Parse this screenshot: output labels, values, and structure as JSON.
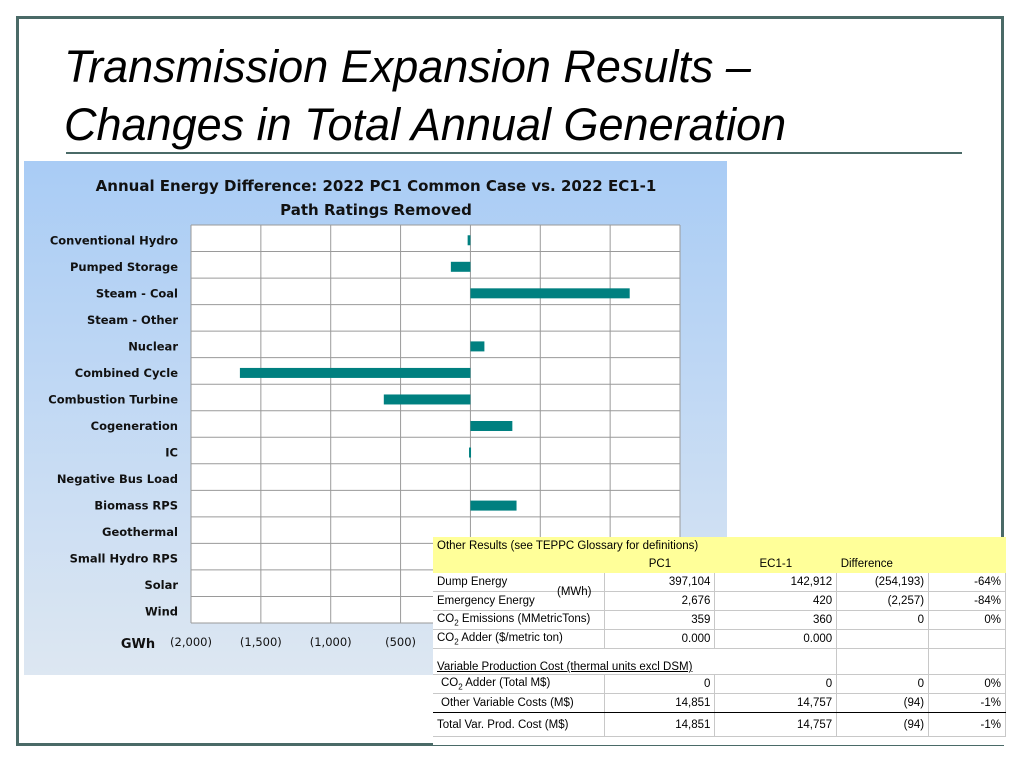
{
  "slide": {
    "title_line1": "Transmission Expansion Results –",
    "title_line2": "Changes in Total Annual Generation"
  },
  "chart_data": {
    "type": "bar",
    "orientation": "horizontal",
    "title_line1": "Annual Energy Difference: 2022 PC1 Common Case vs. 2022 EC1-1",
    "title_line2": "Path Ratings Removed",
    "categories": [
      "Conventional Hydro",
      "Pumped Storage",
      "Steam - Coal",
      "Steam - Other",
      "Nuclear",
      "Combined Cycle",
      "Combustion Turbine",
      "Cogeneration",
      "IC",
      "Negative Bus Load",
      "Biomass RPS",
      "Geothermal",
      "Small Hydro RPS",
      "Solar",
      "Wind"
    ],
    "values": [
      -20,
      -140,
      1140,
      0,
      100,
      -1650,
      -620,
      300,
      -10,
      0,
      330,
      0,
      0,
      0,
      0
    ],
    "x_unit_label": "GWh",
    "x_tick_values": [
      -2000,
      -1500,
      -1000,
      -500
    ],
    "x_tick_labels": [
      "(2,000)",
      "(1,500)",
      "(1,000)",
      "(500)"
    ],
    "xlim": [
      -2000,
      1500
    ],
    "grid": true,
    "bar_color": "#008080"
  },
  "results_table": {
    "header": "Other Results (see TEPPC Glossary for definitions)",
    "columns": [
      "PC1",
      "EC1-1",
      "Difference"
    ],
    "unit_note": "(MWh)",
    "rows": [
      {
        "label": "Dump Energy",
        "pc1": "397,104",
        "ec1": "142,912",
        "diff": "(254,193)",
        "pct": "-64%"
      },
      {
        "label": "Emergency Energy",
        "pc1": "2,676",
        "ec1": "420",
        "diff": "(2,257)",
        "pct": "-84%"
      },
      {
        "label_pre": "CO",
        "label_sub": "2",
        "label_post": " Emissions (MMetricTons)",
        "pc1": "359",
        "ec1": "360",
        "diff": "0",
        "pct": "0%"
      },
      {
        "label_pre": "CO",
        "label_sub": "2",
        "label_post": " Adder ($/metric ton)",
        "pc1": "0.000",
        "ec1": "0.000",
        "diff": "",
        "pct": ""
      }
    ],
    "section_title": "Variable Production Cost (thermal units excl DSM)",
    "cost_rows": [
      {
        "label_pre": "CO",
        "label_sub": "2",
        "label_post": " Adder (Total M$)",
        "pc1": "0",
        "ec1": "0",
        "diff": "0",
        "pct": "0%"
      },
      {
        "label": "Other Variable Costs (M$)",
        "pc1": "14,851",
        "ec1": "14,757",
        "diff": "(94)",
        "pct": "-1%"
      }
    ],
    "total_row": {
      "label": "Total Var. Prod. Cost (M$)",
      "pc1": "14,851",
      "ec1": "14,757",
      "diff": "(94)",
      "pct": "-1%"
    }
  }
}
